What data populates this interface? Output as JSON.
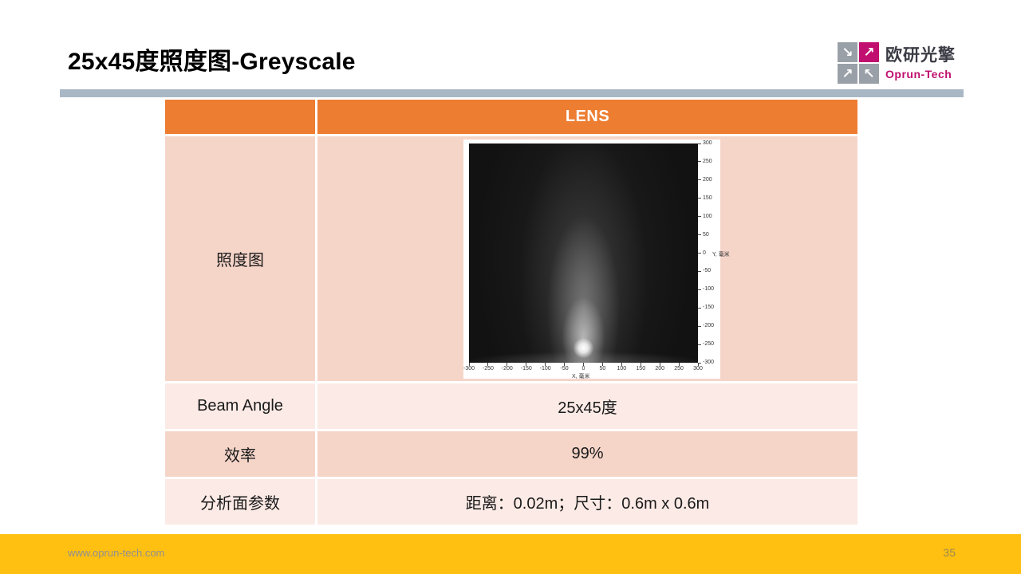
{
  "slide": {
    "title": "25x45度照度图-Greyscale",
    "footer": {
      "url": "www.oprun-tech.com",
      "page_number": "35"
    }
  },
  "logo": {
    "company_cn": "欧研光擎",
    "company_en": "Oprun-Tech",
    "arrows": [
      "↘",
      "↗",
      "↗",
      "↖"
    ]
  },
  "table": {
    "header_label": "LENS",
    "rows": [
      {
        "label": "照度图",
        "value": ""
      },
      {
        "label": "Beam Angle",
        "value": "25x45度"
      },
      {
        "label": "效率",
        "value": "99%"
      },
      {
        "label": "分析面参数",
        "value": "距离：0.02m；尺寸：0.6m x 0.6m"
      }
    ]
  },
  "chart_data": {
    "type": "heatmap",
    "title": "",
    "xlabel": "X, 毫米",
    "ylabel": "Y, 毫米",
    "x_ticks": [
      -300,
      -250,
      -200,
      -150,
      -100,
      -50,
      0,
      50,
      100,
      150,
      200,
      250,
      300
    ],
    "y_ticks": [
      300,
      250,
      200,
      150,
      100,
      50,
      0,
      -50,
      -100,
      -150,
      -200,
      -250,
      -300
    ],
    "xlim": [
      -300,
      300
    ],
    "ylim": [
      -300,
      300
    ],
    "colormap": "greyscale",
    "background_value": "black",
    "hotspot": {
      "x": 0,
      "y": -260,
      "description": "bright illuminance peak near bottom center with glow cone fading upward"
    }
  },
  "colors": {
    "header_orange": "#ED7D31",
    "row_dark": "#F6D5C9",
    "row_light": "#FBEAE5",
    "divider_gray": "#AAB8C6",
    "footer_yellow": "#FFC012",
    "logo_magenta": "#C00F6E",
    "logo_gray": "#9AA0A8"
  }
}
